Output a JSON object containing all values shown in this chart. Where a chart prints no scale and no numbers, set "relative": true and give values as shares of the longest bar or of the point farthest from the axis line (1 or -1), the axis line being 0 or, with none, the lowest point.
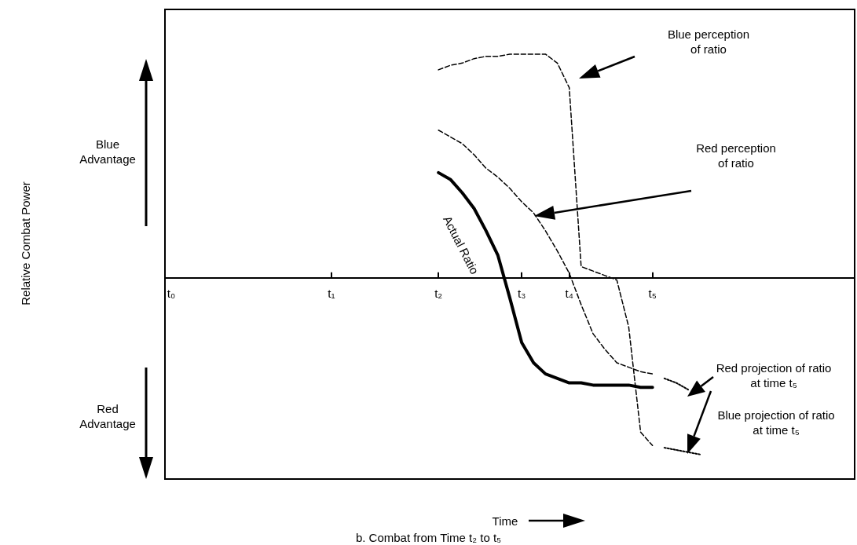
{
  "chart_data": {
    "type": "line",
    "relative": true,
    "title": "b. Combat from Time t₂ to t₅",
    "categories": [
      "t₀",
      null,
      null,
      null,
      null,
      null,
      null,
      null,
      null,
      null,
      null,
      null,
      null,
      null,
      "t₁",
      null,
      null,
      null,
      null,
      null,
      null,
      null,
      null,
      "t₂",
      null,
      null,
      null,
      null,
      null,
      null,
      "t₃",
      null,
      null,
      null,
      "t₄",
      null,
      null,
      null,
      null,
      null,
      null,
      "t₅",
      null,
      null,
      null,
      null,
      null,
      null,
      null,
      null,
      null,
      null,
      null,
      null,
      null,
      null,
      null,
      null,
      null
    ],
    "grid": false,
    "marker": "none",
    "annotations": [
      "Blue\nAdvantage",
      "Red\nAdvantage",
      "Actual Ratio",
      "Blue perception\nof ratio",
      "Red perception\nof ratio",
      "Red projection of ratio\nat time t₅",
      "Blue projection of ratio\nat time t₅",
      "Time",
      "Relative Combat Power"
    ],
    "series": [
      {
        "color": "#000000",
        "line_style": "solid",
        "values": [
          null,
          null,
          null,
          null,
          null,
          null,
          null,
          null,
          null,
          null,
          null,
          null,
          null,
          null,
          null,
          null,
          null,
          null,
          null,
          null,
          null,
          null,
          null,
          0.47,
          0.44,
          0.38,
          0.31,
          0.21,
          0.1,
          -0.09,
          -0.29,
          -0.38,
          -0.43,
          -0.45,
          -0.47,
          -0.47,
          -0.48,
          -0.48,
          -0.48,
          -0.48,
          -0.49,
          -0.49,
          null,
          null,
          null,
          null,
          null,
          null,
          null,
          null,
          null,
          null,
          null,
          null,
          null,
          null,
          null,
          null,
          null
        ]
      },
      {
        "color": "#000000",
        "line_style": "dashed",
        "values": [
          null,
          null,
          null,
          null,
          null,
          null,
          null,
          null,
          null,
          null,
          null,
          null,
          null,
          null,
          null,
          null,
          null,
          null,
          null,
          null,
          null,
          null,
          null,
          0.66,
          0.63,
          0.6,
          0.55,
          0.49,
          0.45,
          0.4,
          0.34,
          0.29,
          0.21,
          0.12,
          0.02,
          -0.12,
          -0.25,
          -0.32,
          -0.38,
          -0.4,
          -0.42,
          -0.43,
          null,
          null,
          null,
          null,
          null,
          null,
          null,
          null,
          null,
          null,
          null,
          null,
          null,
          null,
          null,
          null,
          null
        ]
      },
      {
        "color": "#000000",
        "line_style": "dotted",
        "values": [
          null,
          null,
          null,
          null,
          null,
          null,
          null,
          null,
          null,
          null,
          null,
          null,
          null,
          null,
          null,
          null,
          null,
          null,
          null,
          null,
          null,
          null,
          null,
          null,
          null,
          null,
          null,
          null,
          null,
          null,
          null,
          null,
          null,
          null,
          null,
          null,
          null,
          null,
          null,
          null,
          null,
          null,
          -0.45,
          -0.47,
          -0.5,
          null,
          null,
          null,
          null,
          null,
          null,
          null,
          null,
          null,
          null,
          null,
          null,
          null,
          null
        ]
      },
      {
        "color": "#000000",
        "line_style": "dashed",
        "values": [
          null,
          null,
          null,
          null,
          null,
          null,
          null,
          null,
          null,
          null,
          null,
          null,
          null,
          null,
          null,
          null,
          null,
          null,
          null,
          null,
          null,
          null,
          null,
          0.93,
          0.95,
          0.96,
          0.98,
          0.99,
          0.99,
          1.0,
          1.0,
          1.0,
          1.0,
          0.96,
          0.85,
          0.05,
          0.03,
          0.01,
          -0.01,
          -0.22,
          -0.69,
          -0.75,
          null,
          null,
          null,
          null,
          null,
          null,
          null,
          null,
          null,
          null,
          null,
          null,
          null,
          null,
          null,
          null,
          null
        ]
      },
      {
        "color": "#000000",
        "line_style": "dotted",
        "values": [
          null,
          null,
          null,
          null,
          null,
          null,
          null,
          null,
          null,
          null,
          null,
          null,
          null,
          null,
          null,
          null,
          null,
          null,
          null,
          null,
          null,
          null,
          null,
          null,
          null,
          null,
          null,
          null,
          null,
          null,
          null,
          null,
          null,
          null,
          null,
          null,
          null,
          null,
          null,
          null,
          null,
          null,
          -0.76,
          -0.77,
          -0.78,
          -0.79,
          null,
          null,
          null,
          null,
          null,
          null,
          null,
          null,
          null,
          null,
          null,
          null,
          null
        ]
      }
    ]
  }
}
